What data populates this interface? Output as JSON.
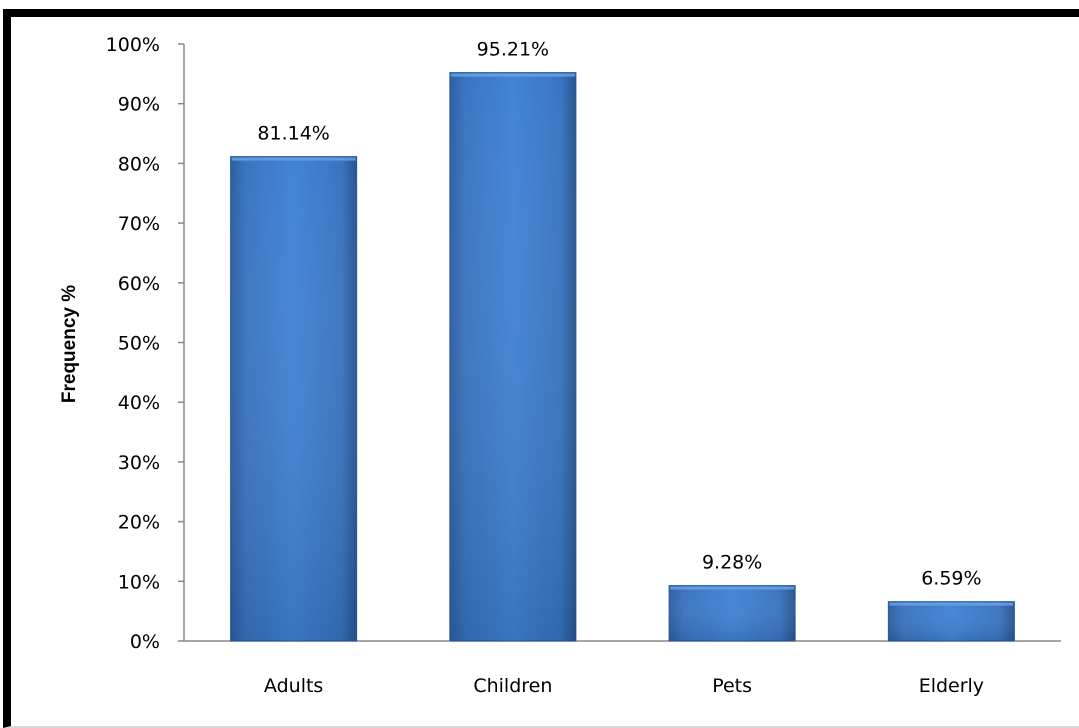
{
  "chart_data": {
    "type": "bar",
    "title": "",
    "xlabel": "",
    "ylabel": "Frequency %",
    "categories": [
      "Adults",
      "Children",
      "Pets",
      "Elderly"
    ],
    "values": [
      81.14,
      95.21,
      9.28,
      6.59
    ],
    "data_labels": [
      "81.14%",
      "95.21%",
      "9.28%",
      "6.59%"
    ],
    "ylim": [
      0,
      100
    ],
    "y_ticks": [
      0,
      10,
      20,
      30,
      40,
      50,
      60,
      70,
      80,
      90,
      100
    ],
    "y_tick_labels": [
      "0%",
      "10%",
      "20%",
      "30%",
      "40%",
      "50%",
      "60%",
      "70%",
      "80%",
      "90%",
      "100%"
    ],
    "grid": false,
    "legend": "none",
    "bar_color": "#3f7bc8"
  }
}
